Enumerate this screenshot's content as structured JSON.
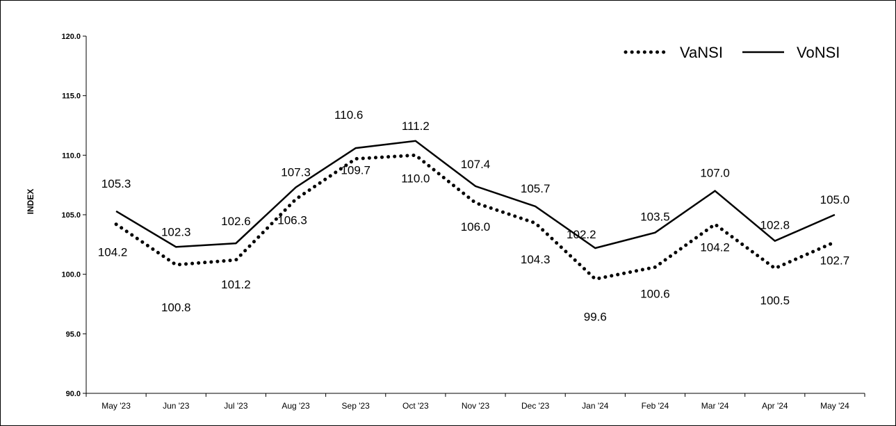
{
  "chart_data": {
    "type": "line",
    "title": "",
    "xlabel": "",
    "ylabel": "INDEX",
    "ylim": [
      90.0,
      120.0
    ],
    "yticks": [
      "90.0",
      "95.0",
      "100.0",
      "105.0",
      "110.0",
      "115.0",
      "120.0"
    ],
    "grid": false,
    "legend_position": "top-right",
    "categories": [
      "May '23",
      "Jun '23",
      "Jul '23",
      "Aug '23",
      "Sep '23",
      "Oct '23",
      "Nov '23",
      "Dec '23",
      "Jan '24",
      "Feb '24",
      "Mar '24",
      "Apr '24",
      "May '24"
    ],
    "series": [
      {
        "name": "VaNSI",
        "style": "dotted",
        "color": "#000000",
        "values": [
          104.2,
          100.8,
          101.2,
          106.3,
          109.7,
          110.0,
          106.0,
          104.3,
          99.6,
          100.6,
          104.2,
          100.5,
          102.7
        ],
        "labels": [
          "104.2",
          "100.8",
          "101.2",
          "106.3",
          "109.7",
          "110.0",
          "106.0",
          "104.3",
          "99.6",
          "100.6",
          "104.2",
          "100.5",
          "102.7"
        ]
      },
      {
        "name": "VoNSI",
        "style": "solid",
        "color": "#000000",
        "values": [
          105.3,
          102.3,
          102.6,
          107.3,
          110.6,
          111.2,
          107.4,
          105.7,
          102.2,
          103.5,
          107.0,
          102.8,
          105.0
        ],
        "labels": [
          "105.3",
          "102.3",
          "102.6",
          "107.3",
          "110.6",
          "111.2",
          "107.4",
          "105.7",
          "102.2",
          "103.5",
          "107.0",
          "102.8",
          "105.0"
        ]
      }
    ]
  }
}
